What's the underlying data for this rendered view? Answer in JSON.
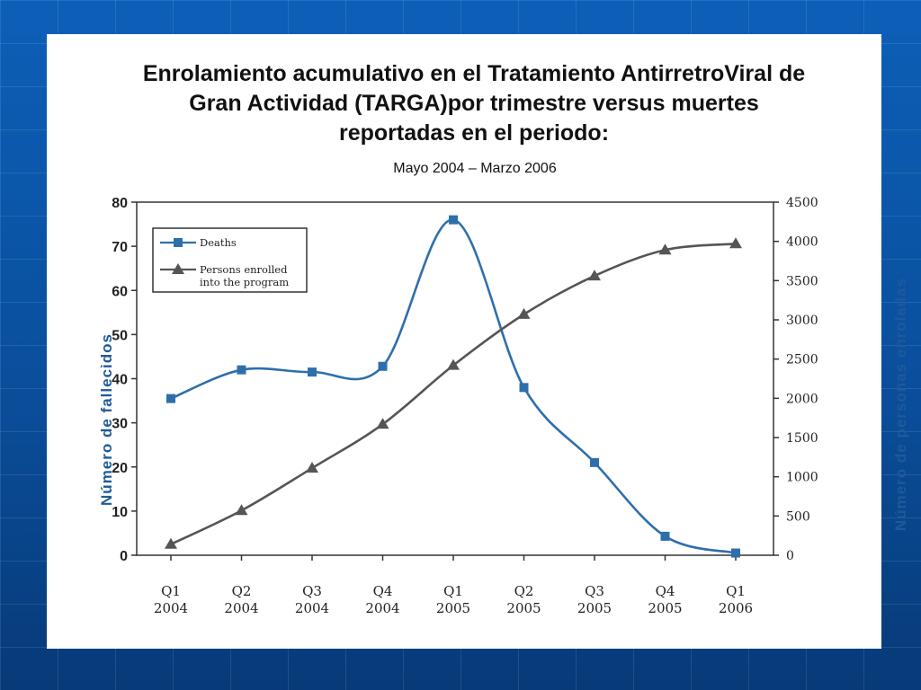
{
  "slide": {
    "title_line1": "Enrolamiento acumulativo en el Tratamiento AntirretroViral de",
    "title_line2": "Gran Actividad (TARGA)por trimestre versus muertes",
    "title_line3": "reportadas en el periodo:",
    "subtitle": "Mayo 2004 – Marzo 2006"
  },
  "chart_data": {
    "type": "line",
    "categories": [
      [
        "Q1",
        "2004"
      ],
      [
        "Q2",
        "2004"
      ],
      [
        "Q3",
        "2004"
      ],
      [
        "Q4",
        "2004"
      ],
      [
        "Q1",
        "2005"
      ],
      [
        "Q2",
        "2005"
      ],
      [
        "Q3",
        "2005"
      ],
      [
        "Q4",
        "2005"
      ],
      [
        "Q1",
        "2006"
      ]
    ],
    "ylabel_left": "Número de fallecidos",
    "ylabel_right": "Número de personas enroladas",
    "ylim_left": [
      0,
      80
    ],
    "yticks_left": [
      0,
      10,
      20,
      30,
      40,
      50,
      60,
      70,
      80
    ],
    "ylim_right": [
      0,
      4500
    ],
    "yticks_right": [
      0,
      500,
      1000,
      1500,
      2000,
      2500,
      3000,
      3500,
      4000,
      4500
    ],
    "legend_position": "top-left",
    "series": [
      {
        "name": "Deaths",
        "axis": "left",
        "marker": "square",
        "color": "#2e6fab",
        "values": [
          35.5,
          42,
          41.5,
          42.8,
          76,
          38,
          21,
          4.3,
          0.5
        ]
      },
      {
        "name": "Persons enrolled into the program",
        "legend_lines": [
          "Persons enrolled",
          "into the program"
        ],
        "axis": "right",
        "marker": "triangle",
        "color": "#555555",
        "values": [
          140,
          570,
          1110,
          1670,
          2420,
          3070,
          3560,
          3890,
          3970
        ]
      }
    ]
  }
}
